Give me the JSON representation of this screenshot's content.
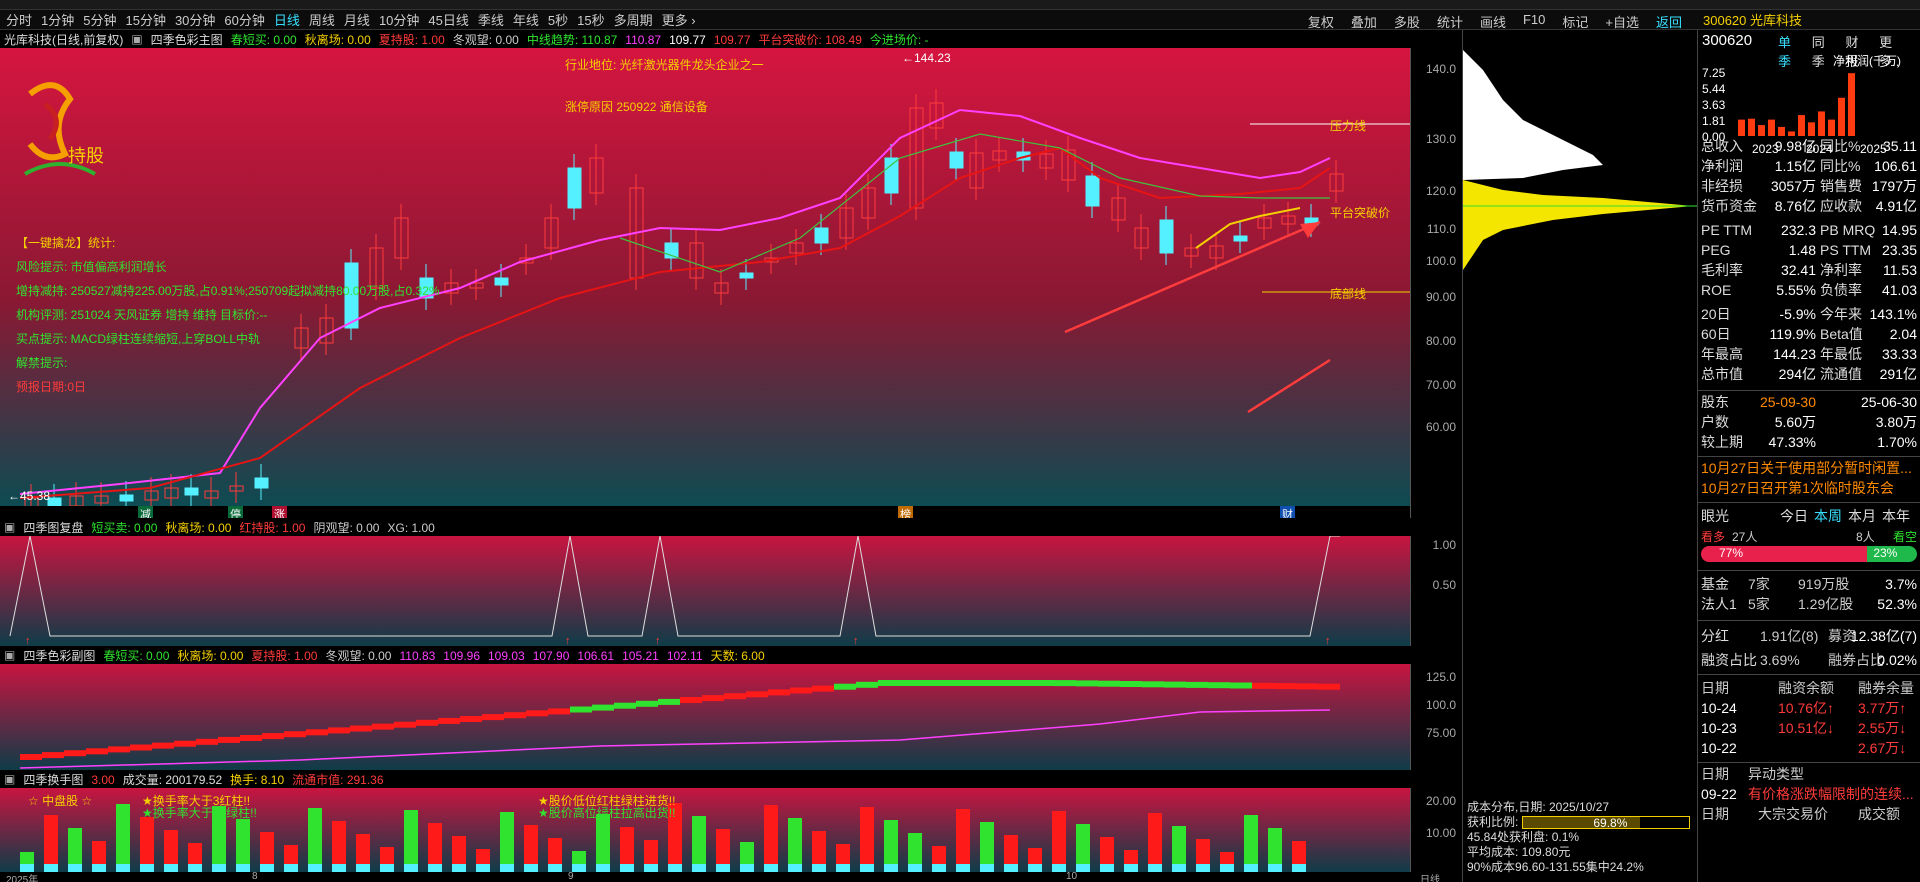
{
  "toolbar": {
    "periods": [
      "分时",
      "1分钟",
      "5分钟",
      "15分钟",
      "30分钟",
      "60分钟",
      "日线",
      "周线",
      "月线",
      "10分钟",
      "45日线",
      "季线",
      "年线",
      "5秒",
      "15秒",
      "多周期",
      "更多 ›"
    ],
    "active": "日线",
    "right": [
      "复权",
      "叠加",
      "多股",
      "统计",
      "画线",
      "F10",
      "标记",
      "+自选",
      "返回"
    ]
  },
  "stock_header": {
    "code_name": "300620 光库科技",
    "code": "300620",
    "tabs": [
      "单季",
      "同季",
      "财报",
      "更多.."
    ]
  },
  "chart_title": {
    "name": "光库科技(日线,前复权)",
    "indicator": "四季色彩主图",
    "items": [
      {
        "t": "春短买: 0.00",
        "c": "#2fe32f"
      },
      {
        "t": "秋离场: 0.00",
        "c": "#f5d000"
      },
      {
        "t": "夏持股: 1.00",
        "c": "#ff3b3b"
      },
      {
        "t": "冬观望: 0.00",
        "c": "#cccccc"
      },
      {
        "t": "中线趋势: 110.87",
        "c": "#2fe32f"
      },
      {
        "t": "110.87",
        "c": "#ff40ff"
      },
      {
        "t": "109.77",
        "c": "#ffffff"
      },
      {
        "t": "109.77",
        "c": "#ff3b3b"
      },
      {
        "t": "平台突破价: 108.49",
        "c": "#ff3b3b"
      },
      {
        "t": "今进场价: -",
        "c": "#2fe32f"
      }
    ]
  },
  "main_chart": {
    "logo_text": "持股",
    "industry": "行业地位: 光纤激光器件龙头企业之一",
    "limit_reason": "涨停原因 250922 通信设备",
    "stats": [
      {
        "t": "【一键擒龙】统计:",
        "c": "#f5d000"
      },
      {
        "t": "风险提示: 市值偏高利润增长",
        "c": "#2fe32f"
      },
      {
        "t": "增持减持: 250527减持225.00万股,占0.91%;250709起拟减持80.00万股,占0.32%",
        "c": "#2fe32f"
      },
      {
        "t": "机构评测: 251024 天风证券  增持 维持 目标价:--",
        "c": "#2fe32f"
      },
      {
        "t": "买点提示: MACD绿柱连续缩短,上穿BOLL中轨",
        "c": "#2fe32f"
      },
      {
        "t": "解禁提示:",
        "c": "#2fe32f"
      },
      {
        "t": "预报日期:0日",
        "c": "#ff3b3b"
      }
    ],
    "high": "144.23",
    "low": "45.38",
    "pressure": "压力线",
    "breakout": "平台突破价",
    "bottom": "底部线",
    "markers": [
      "减",
      "停",
      "涨",
      "榜",
      "财"
    ]
  },
  "price_axis": [
    "140.0",
    "130.0",
    "120.0",
    "110.0",
    "100.0",
    "90.00",
    "80.00",
    "70.00",
    "60.00"
  ],
  "panel2": {
    "title": "四季图复盘",
    "items": [
      {
        "t": "短买卖: 0.00",
        "c": "#2fe32f"
      },
      {
        "t": "秋离场: 0.00",
        "c": "#f5d000"
      },
      {
        "t": "红持股: 1.00",
        "c": "#ff3b3b"
      },
      {
        "t": "阴观望: 0.00",
        "c": "#cccccc"
      },
      {
        "t": "XG: 1.00",
        "c": "#cccccc"
      }
    ],
    "axis": [
      "1.00",
      "0.50"
    ]
  },
  "panel3": {
    "title": "四季色彩副图",
    "items": [
      {
        "t": "春短买: 0.00",
        "c": "#2fe32f"
      },
      {
        "t": "秋离场: 0.00",
        "c": "#f5d000"
      },
      {
        "t": "夏持股: 1.00",
        "c": "#ff3b3b"
      },
      {
        "t": "冬观望: 0.00",
        "c": "#cccccc"
      },
      {
        "t": "110.83",
        "c": "#ff40ff"
      },
      {
        "t": "109.96",
        "c": "#ff40ff"
      },
      {
        "t": "109.03",
        "c": "#ff40ff"
      },
      {
        "t": "107.90",
        "c": "#ff40ff"
      },
      {
        "t": "106.61",
        "c": "#ff40ff"
      },
      {
        "t": "105.21",
        "c": "#ff40ff"
      },
      {
        "t": "102.11",
        "c": "#ff40ff"
      },
      {
        "t": "天数: 6.00",
        "c": "#f5d000"
      }
    ],
    "axis": [
      "125.0",
      "100.0",
      "75.00"
    ]
  },
  "panel4": {
    "title": "四季换手图",
    "items": [
      {
        "t": "3.00",
        "c": "#ff3b3b"
      },
      {
        "t": "成交量: 200179.52",
        "c": "#dddddd"
      },
      {
        "t": "换手: 8.10",
        "c": "#f5d000"
      },
      {
        "t": "流通市值: 291.36",
        "c": "#ff3b3b"
      }
    ],
    "tags": [
      "☆ 中盘股 ☆",
      "★换手率大于3红柱!!",
      "★换手率大于10绿柱!!",
      "★股价低位红柱绿柱进货!!",
      "★股价高位绿柱拉高出货!!"
    ],
    "axis": [
      "20.00",
      "10.00"
    ]
  },
  "date_axis": [
    "2025年",
    "8",
    "9",
    "10",
    "日线"
  ],
  "chip": {
    "date": "成本分布,日期: 2025/10/27",
    "profit_label": "获利比例:",
    "profit": "69.8%",
    "profit_at": "45.84处获利盘: 0.1%",
    "avg_cost": "平均成本: 109.80元",
    "range90": "90%成本96.60-131.55集中24.2%"
  },
  "fin": {
    "label": "净利润(千万)",
    "ticks": [
      "7.25",
      "5.44",
      "3.63",
      "1.81",
      "0.00"
    ],
    "years": [
      "2023",
      "2024",
      "2025"
    ],
    "bars": [
      1.8,
      1.9,
      1.2,
      1.8,
      1.0,
      0.5,
      2.3,
      1.5,
      2.7,
      1.8,
      4.2,
      6.9
    ]
  },
  "metrics": [
    {
      "l": "总收入",
      "v1": "9.98亿",
      "l2": "同比%",
      "v2": "35.11",
      "c2": "#fff"
    },
    {
      "l": "净利润",
      "v1": "1.15亿",
      "l2": "同比%",
      "v2": "106.61",
      "c2": "#fff"
    },
    {
      "l": "非经损",
      "v1": "3057万",
      "l2": "销售费",
      "v2": "1797万",
      "c2": "#fff"
    },
    {
      "l": "货币资金",
      "v1": "8.76亿",
      "l2": "应收款",
      "v2": "4.91亿",
      "c2": "#fff"
    },
    {
      "l": "PE TTM",
      "v1": "232.3",
      "l2": "PB MRQ",
      "v2": "14.95",
      "c2": "#fff"
    },
    {
      "l": "PEG",
      "v1": "1.48",
      "l2": "PS TTM",
      "v2": "23.35",
      "c2": "#fff"
    },
    {
      "l": "毛利率",
      "v1": "32.41",
      "l2": "净利率",
      "v2": "11.53",
      "c2": "#fff"
    },
    {
      "l": "ROE",
      "v1": "5.55%",
      "l2": "负债率",
      "v2": "41.03",
      "c2": "#fff"
    },
    {
      "l": "20日",
      "v1": "-5.9%",
      "l2": "今年来",
      "v2": "143.1%",
      "c2": "#fff"
    },
    {
      "l": "60日",
      "v1": "119.9%",
      "l2": "Beta值",
      "v2": "2.04",
      "c2": "#fff"
    },
    {
      "l": "年最高",
      "v1": "144.23",
      "l2": "年最低",
      "v2": "33.33",
      "c2": "#fff"
    },
    {
      "l": "总市值",
      "v1": "294亿",
      "l2": "流通值",
      "v2": "291亿",
      "c2": "#fff"
    }
  ],
  "holders": {
    "label": "股东",
    "d1": "25-09-30",
    "d2": "25-06-30",
    "rows": [
      {
        "l": "户数",
        "v1": "5.60万",
        "v2": "3.80万"
      },
      {
        "l": "较上期",
        "v1": "47.33%",
        "v2": "1.70%"
      }
    ]
  },
  "news": [
    "10月27日关于使用部分暂时闲置...",
    "10月27日召开第1次临时股东会"
  ],
  "eye": {
    "label": "眼光",
    "tabs": [
      "今日",
      "本周",
      "本月",
      "本年"
    ],
    "active": "本周",
    "bull": "看多",
    "bull_n": "27人",
    "bear": "看空",
    "bear_n": "8人",
    "bull_pct": "77%",
    "bear_pct": "23%"
  },
  "funds": [
    {
      "l": "基金",
      "v1": "7家",
      "v2": "919万股",
      "v3": "3.7%"
    },
    {
      "l": "法人1",
      "v1": "5家",
      "v2": "1.29亿股",
      "v3": "52.3%"
    }
  ],
  "dividend": {
    "l": "分红",
    "v1": "1.91亿(8)",
    "l2": "募资",
    "v2": "12.38亿(7)"
  },
  "margin": {
    "l": "融资占比",
    "v1": "3.69%",
    "l2": "融券占比",
    "v2": "0.02%"
  },
  "margin_table": {
    "head": [
      "日期",
      "融资余额",
      "融券余量"
    ],
    "rows": [
      [
        "10-24",
        "10.76亿↑",
        "3.77万↑"
      ],
      [
        "10-23",
        "10.51亿↓",
        "2.55万↓"
      ],
      [
        "10-22",
        "",
        "2.67万↓"
      ]
    ]
  },
  "abnormal": {
    "head": [
      "日期",
      "异动类型"
    ],
    "rows": [
      [
        "09-22",
        "有价格涨跌幅限制的连续..."
      ]
    ]
  },
  "block": {
    "head": [
      "日期",
      "大宗交易价",
      "成交额"
    ]
  }
}
